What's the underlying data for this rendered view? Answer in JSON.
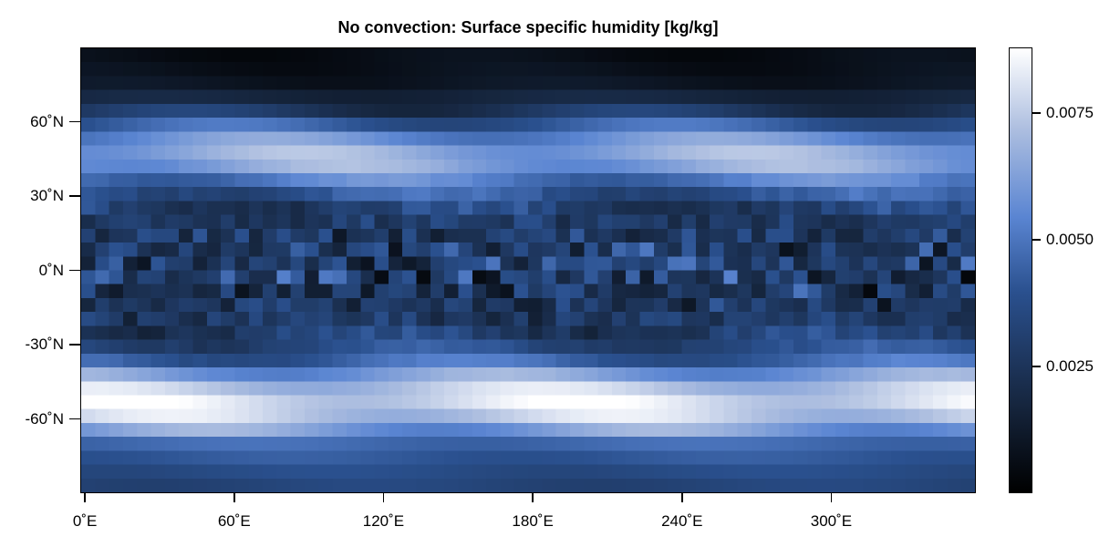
{
  "chart_data": {
    "type": "heatmap",
    "title": "No convection: Surface specific humidity [kg/kg]",
    "xlabel": "",
    "ylabel": "",
    "x_ticks": [
      {
        "value": 0,
        "label": "0˚E"
      },
      {
        "value": 60,
        "label": "60˚E"
      },
      {
        "value": 120,
        "label": "120˚E"
      },
      {
        "value": 180,
        "label": "180˚E"
      },
      {
        "value": 240,
        "label": "240˚E"
      },
      {
        "value": 300,
        "label": "300˚E"
      }
    ],
    "y_ticks": [
      {
        "value": 60,
        "label": "60˚N"
      },
      {
        "value": 30,
        "label": "30˚N"
      },
      {
        "value": 0,
        "label": "0˚N"
      },
      {
        "value": -30,
        "label": "-30˚N"
      },
      {
        "value": -60,
        "label": "-60˚N"
      }
    ],
    "xlim": [
      -1.875,
      358.125
    ],
    "ylim": [
      -90,
      90
    ],
    "colorbar": {
      "range": [
        0.0,
        0.0088
      ],
      "ticks": [
        {
          "value": 0.0025,
          "label": "0.0025"
        },
        {
          "value": 0.005,
          "label": "0.0050"
        },
        {
          "value": 0.0075,
          "label": "0.0075"
        }
      ],
      "colormap": [
        "#000000",
        "#16263f",
        "#2a508e",
        "#5a85d2",
        "#aebfe0",
        "#ffffff"
      ]
    },
    "zonal_profile": {
      "description_lat": [
        -88,
        -80,
        -70,
        -60,
        -52,
        -45,
        -35,
        -25,
        -15,
        -5,
        5,
        15,
        25,
        35,
        45,
        55,
        65,
        75,
        85
      ],
      "q_mean": [
        0.0033,
        0.0038,
        0.0047,
        0.0075,
        0.0082,
        0.007,
        0.004,
        0.003,
        0.0026,
        0.0028,
        0.003,
        0.0027,
        0.003,
        0.0048,
        0.007,
        0.0055,
        0.0025,
        0.001,
        0.0006
      ]
    }
  }
}
